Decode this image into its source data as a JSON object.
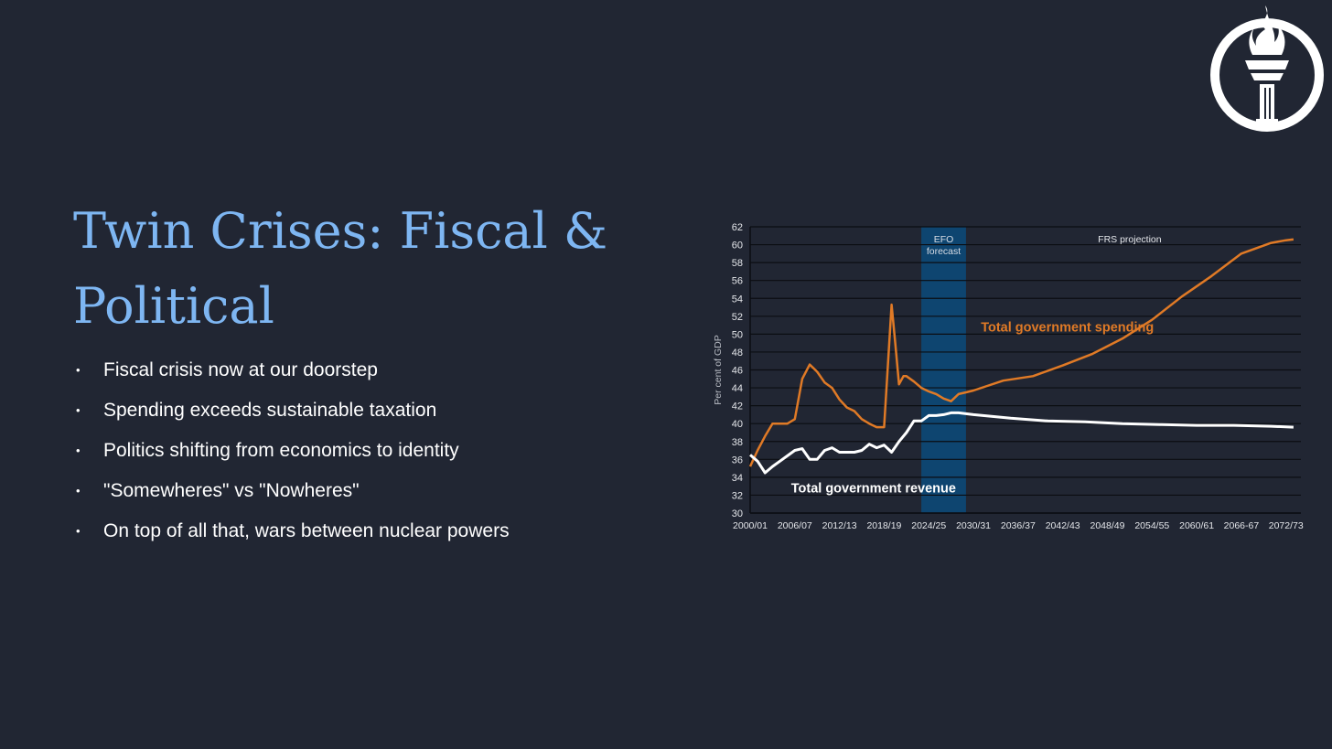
{
  "slide": {
    "title": "Twin Crises: Fiscal & Political",
    "bullets": [
      "Fiscal crisis now at our doorstep",
      "Spending exceeds sustainable taxation",
      "Politics shifting from economics to identity",
      "\"Somewheres\" vs \"Nowheres\"",
      "On top of all that, wars between nuclear powers"
    ],
    "logo_icon": "torch-icon"
  },
  "colors": {
    "background": "#212633",
    "title": "#7eb6f2",
    "spending": "#e07a26",
    "revenue": "#ffffff",
    "forecast_band": "#0e4570"
  },
  "chart_data": {
    "type": "line",
    "ylabel": "Per cent of GDP",
    "ylim": [
      30,
      62
    ],
    "yticks": [
      30,
      32,
      34,
      36,
      38,
      40,
      42,
      44,
      46,
      48,
      50,
      52,
      54,
      56,
      58,
      60,
      62
    ],
    "x_tick_labels": [
      "2000/01",
      "2006/07",
      "2012/13",
      "2018/19",
      "2024/25",
      "2030/31",
      "2036/37",
      "2042/43",
      "2048/49",
      "2054/55",
      "2060/61",
      "2066-67",
      "2072/73"
    ],
    "x_start_year": 2000,
    "x_end_year": 2074,
    "grid": true,
    "shaded_region": {
      "label_line1": "EFO",
      "label_line2": "forecast",
      "from_year": 2023,
      "to_year": 2029
    },
    "annotation": "FRS projection",
    "series": [
      {
        "name": "Total government spending",
        "x": [
          2000,
          2001,
          2002,
          2003,
          2004,
          2005,
          2006,
          2007,
          2008,
          2009,
          2010,
          2011,
          2012,
          2013,
          2014,
          2015,
          2016,
          2017,
          2018,
          2019,
          2019.5,
          2020,
          2020.6,
          2021,
          2022,
          2023,
          2024,
          2025,
          2026,
          2027,
          2028,
          2029,
          2030,
          2034,
          2038,
          2042,
          2046,
          2050,
          2054,
          2058,
          2062,
          2066,
          2070,
          2072,
          2073
        ],
        "y": [
          35.2,
          37,
          38.6,
          40,
          40,
          40,
          40.5,
          45,
          46.6,
          45.8,
          44.6,
          44,
          42.7,
          41.8,
          41.4,
          40.5,
          40,
          39.6,
          39.6,
          53.3,
          49,
          44.4,
          45.3,
          45.3,
          44.7,
          44,
          43.6,
          43.3,
          42.8,
          42.5,
          43.3,
          43.5,
          43.7,
          44.8,
          45.3,
          46.5,
          47.8,
          49.5,
          51.6,
          54.2,
          56.5,
          59,
          60.2,
          60.5,
          60.6
        ]
      },
      {
        "name": "Total government revenue",
        "x": [
          2000,
          2001,
          2002,
          2003,
          2004,
          2005,
          2006,
          2007,
          2008,
          2009,
          2010,
          2011,
          2012,
          2013,
          2014,
          2015,
          2016,
          2017,
          2018,
          2019,
          2020,
          2021,
          2022,
          2023,
          2024,
          2025,
          2026,
          2027,
          2028,
          2029,
          2030,
          2035,
          2040,
          2045,
          2050,
          2055,
          2060,
          2065,
          2070,
          2073
        ],
        "y": [
          36.5,
          35.8,
          34.5,
          35.2,
          35.8,
          36.4,
          37,
          37.2,
          36,
          36,
          37,
          37.3,
          36.8,
          36.8,
          36.8,
          37,
          37.7,
          37.3,
          37.6,
          36.8,
          38,
          39,
          40.3,
          40.3,
          40.9,
          40.9,
          41,
          41.2,
          41.2,
          41.1,
          41,
          40.6,
          40.3,
          40.2,
          40,
          39.9,
          39.8,
          39.8,
          39.7,
          39.6
        ]
      }
    ]
  }
}
